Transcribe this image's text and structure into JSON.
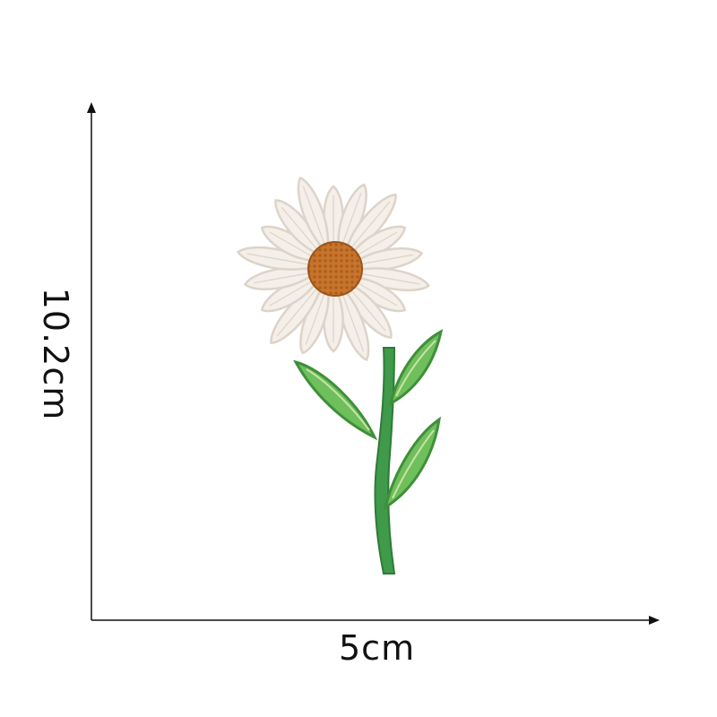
{
  "dimensions": {
    "width_label": "5cm",
    "height_label": "10.2cm"
  },
  "product": {
    "subject": "daisy-embroidered-patch",
    "colors": {
      "background": "#ffffff",
      "axis": "#111111",
      "petal": "#f4efe9",
      "petal_shade": "#ddd3c8",
      "center": "#c8742a",
      "center_dark": "#9c531b",
      "stem": "#3f9a4a",
      "leaf": "#6fbf5c",
      "leaf_light": "#c9e3a6"
    }
  }
}
